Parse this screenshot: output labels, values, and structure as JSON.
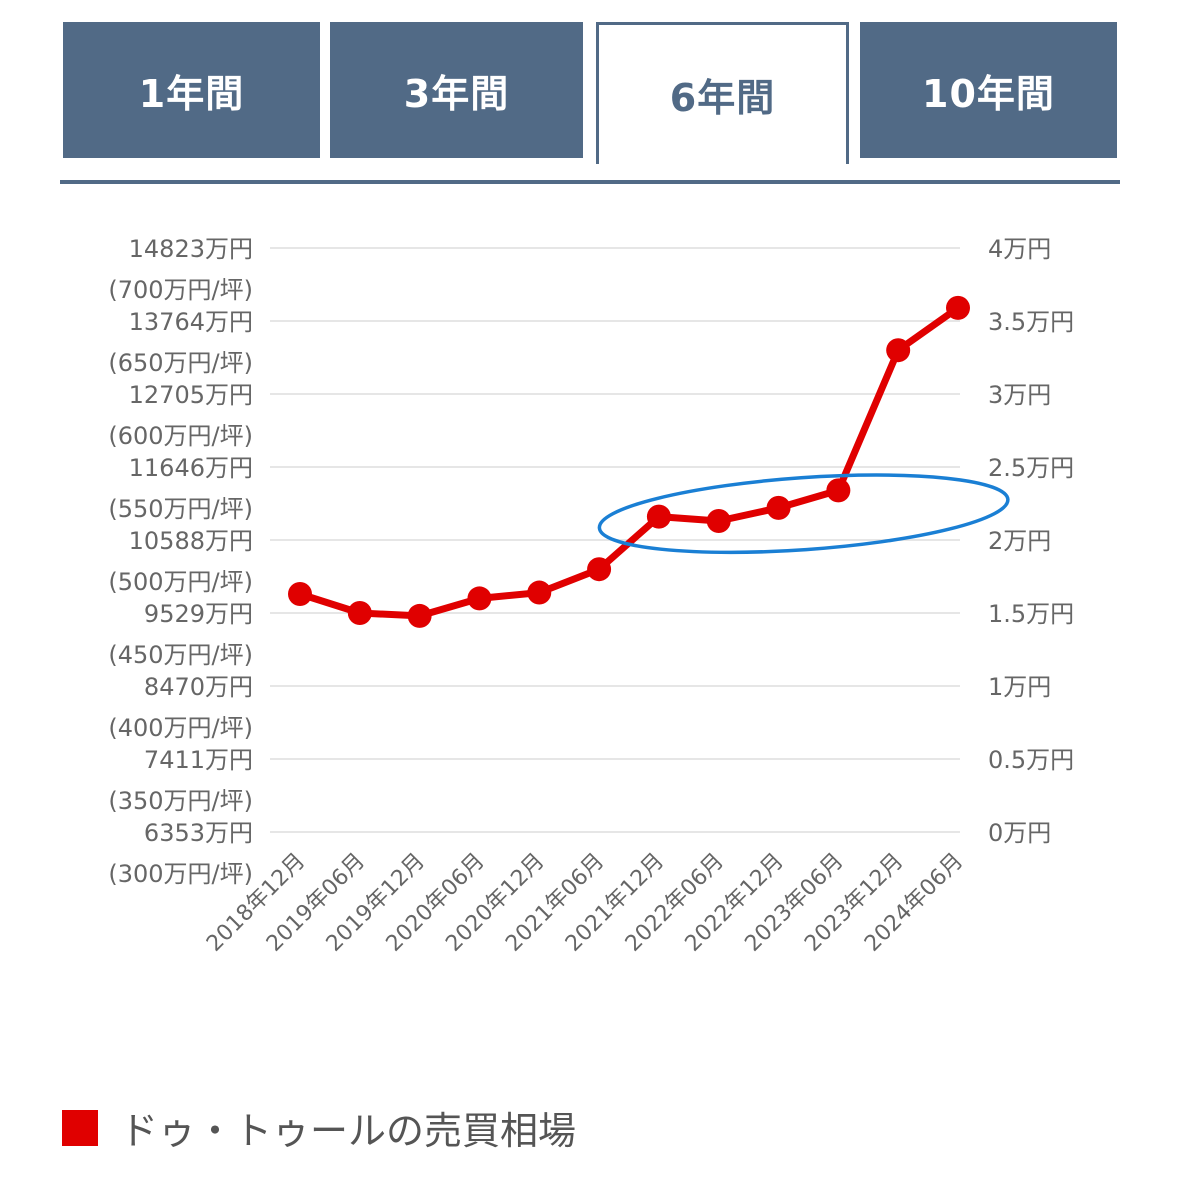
{
  "tabs": [
    {
      "label": "1年間",
      "active": false
    },
    {
      "label": "3年間",
      "active": false
    },
    {
      "label": "6年間",
      "active": true
    },
    {
      "label": "10年間",
      "active": false
    }
  ],
  "colors": {
    "tab_bg": "#516a86",
    "series": "#e00000",
    "highlight": "#1a7fd4",
    "grid": "#e6e6e6",
    "label": "#666666"
  },
  "legend": {
    "label": "ドゥ・トゥールの売買相場"
  },
  "chart_data": {
    "type": "line",
    "x": [
      "2018年12月",
      "2019年06月",
      "2019年12月",
      "2020年06月",
      "2020年12月",
      "2021年06月",
      "2021年12月",
      "2022年06月",
      "2022年12月",
      "2023年06月",
      "2023年12月",
      "2024年06月"
    ],
    "series": [
      {
        "name": "ドゥ・トゥールの売買相場",
        "values": [
          463,
          450,
          448,
          460,
          464,
          480,
          516,
          513,
          522,
          534,
          630,
          659
        ]
      }
    ],
    "y_unit": "万円/坪",
    "ylim": [
      300,
      700
    ],
    "left_ticks": [
      {
        "value": 700,
        "total": "14823万円",
        "per_tsubo": "(700万円/坪)"
      },
      {
        "value": 650,
        "total": "13764万円",
        "per_tsubo": "(650万円/坪)"
      },
      {
        "value": 600,
        "total": "12705万円",
        "per_tsubo": "(600万円/坪)"
      },
      {
        "value": 550,
        "total": "11646万円",
        "per_tsubo": "(550万円/坪)"
      },
      {
        "value": 500,
        "total": "10588万円",
        "per_tsubo": "(500万円/坪)"
      },
      {
        "value": 450,
        "total": "9529万円",
        "per_tsubo": "(450万円/坪)"
      },
      {
        "value": 400,
        "total": "8470万円",
        "per_tsubo": "(400万円/坪)"
      },
      {
        "value": 350,
        "total": "7411万円",
        "per_tsubo": "(350万円/坪)"
      },
      {
        "value": 300,
        "total": "6353万円",
        "per_tsubo": "(300万円/坪)"
      }
    ],
    "right_ticks": [
      "4万円",
      "3.5万円",
      "3万円",
      "2.5万円",
      "2万円",
      "1.5万円",
      "1万円",
      "0.5万円",
      "0万円"
    ],
    "annotation": {
      "type": "hand-drawn-ellipse",
      "covers": [
        "2021年12月",
        "2022年06月",
        "2022年12月",
        "2023年06月"
      ]
    },
    "grid": true,
    "legend_position": "bottom-left"
  }
}
